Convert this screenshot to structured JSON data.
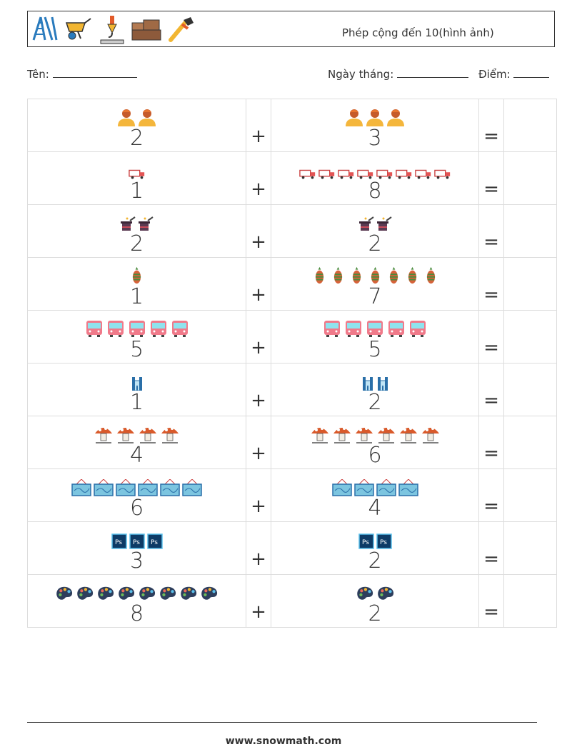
{
  "header": {
    "title": "Phép cộng đến 10(hình ảnh)",
    "icons": [
      "ladder-icon",
      "wheelbarrow-icon",
      "crane-hook-icon",
      "lumber-icon",
      "pipe-wrench-icon"
    ]
  },
  "info": {
    "name_label": "Tên:",
    "date_label": "Ngày tháng:",
    "score_label": "Điểm:"
  },
  "symbols": {
    "plus": "+",
    "equals": "="
  },
  "problems": [
    {
      "a": "2",
      "b": "3",
      "icon": "worker-icon"
    },
    {
      "a": "1",
      "b": "8",
      "icon": "truck-icon"
    },
    {
      "a": "2",
      "b": "2",
      "icon": "magic-hat-icon"
    },
    {
      "a": "1",
      "b": "7",
      "icon": "pine-cone-icon"
    },
    {
      "a": "5",
      "b": "5",
      "icon": "bus-icon"
    },
    {
      "a": "1",
      "b": "2",
      "icon": "castle-icon"
    },
    {
      "a": "4",
      "b": "6",
      "icon": "mushroom-icon"
    },
    {
      "a": "6",
      "b": "4",
      "icon": "map-board-icon"
    },
    {
      "a": "3",
      "b": "2",
      "icon": "photoshop-icon"
    },
    {
      "a": "8",
      "b": "2",
      "icon": "palette-icon"
    }
  ],
  "footer": {
    "url": "www.snowmath.com"
  }
}
